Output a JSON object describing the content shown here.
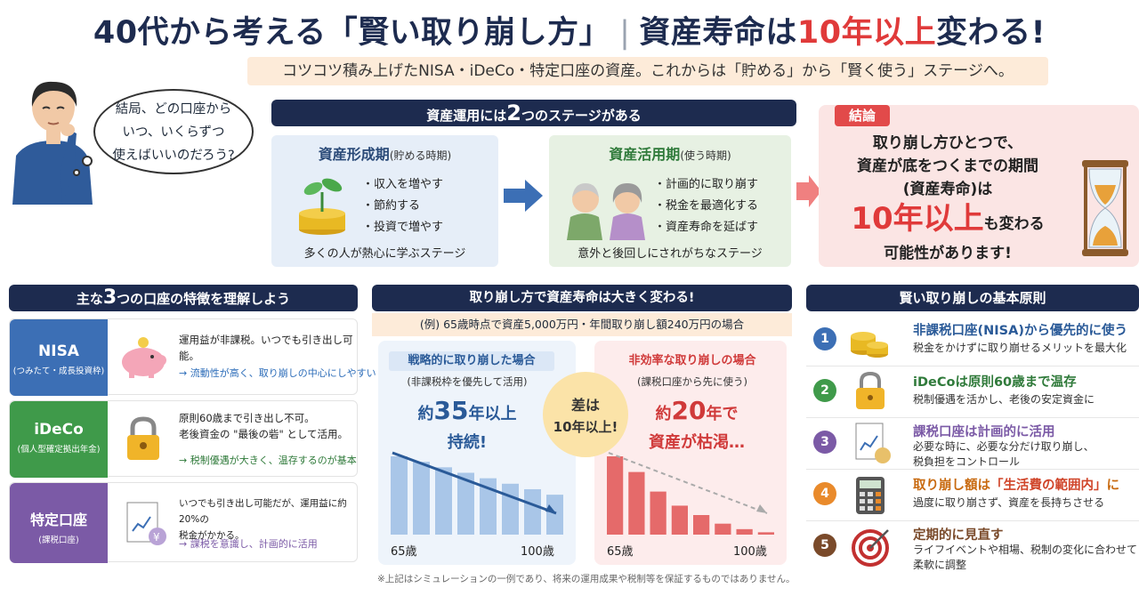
{
  "header": {
    "title_main": "40代から考える「賢い取り崩し方」",
    "title_sep": "|",
    "title_pre": "資産寿命は",
    "title_accent": "10年以上",
    "title_post": "変わる!",
    "subtitle": "コツコツ積み上げたNISA・iDeCo・特定口座の資産。これからは「貯める」から「賢く使う」ステージへ。",
    "accent_color": "#e03a3a"
  },
  "bubble": {
    "text": "結局、どの口座から\nいつ、いくらずつ\n使えばいいのだろう?"
  },
  "stages": {
    "header_pre": "資産運用には",
    "header_num": "2",
    "header_post": "つのステージがある",
    "formation": {
      "title": "資産形成期",
      "sub": "(貯める時期)",
      "items": [
        "収入を増やす",
        "節約する",
        "投資で増やす"
      ],
      "footer": "多くの人が熱心に学ぶステージ"
    },
    "utilization": {
      "title": "資産活用期",
      "sub": "(使う時期)",
      "items": [
        "計画的に取り崩す",
        "税金を最適化する",
        "資産寿命を延ばす"
      ],
      "footer": "意外と後回しにされがちなステージ"
    }
  },
  "conclusion": {
    "badge": "結論",
    "line1": "取り崩し方ひとつで、",
    "line2": "資産が底をつくまでの期間",
    "line3": "(資産寿命)は",
    "big": "10年以上",
    "after_big": "も変わる",
    "line5": "可能性があります!"
  },
  "accounts": {
    "header_pre": "主な",
    "header_num": "3",
    "header_post": "つの口座の特徴を理解しよう",
    "items": [
      {
        "name": "NISA",
        "sub": "(つみたて・成長投資枠)",
        "desc": "運用益が非課税。いつでも引き出し可能。",
        "link": "→ 流動性が高く、取り崩しの中心にしやすい",
        "color": "#3c6fb5",
        "icon": "piggy-bank-icon"
      },
      {
        "name": "iDeCo",
        "sub": "(個人型確定拠出年金)",
        "desc": "原則60歳まで引き出し不可。\n老後資金の \"最後の砦\" として活用。",
        "link": "→ 税制優遇が大きく、温存するのが基本",
        "color": "#3f9a4a",
        "icon": "padlock-icon"
      },
      {
        "name": "特定口座",
        "sub": "(課税口座)",
        "desc": "いつでも引き出し可能だが、運用益に約20%の\n税金がかかる。",
        "link": "→ 課税を意識し、計画的に活用",
        "color": "#7b5aa6",
        "icon": "tax-document-icon"
      }
    ]
  },
  "simulation": {
    "header": "取り崩し方で資産寿命は大きく変わる!",
    "example": "(例) 65歳時点で資産5,000万円・年間取り崩し額240万円の場合",
    "left": {
      "title": "戦略的に取り崩した場合",
      "sub": "(非課税枠を優先して活用)",
      "big_pre": "約",
      "big_num": "35",
      "big_post": "年以上",
      "line2": "持続!",
      "start": "65歳",
      "end": "100歳",
      "color": "#a9c6e8"
    },
    "right": {
      "title": "非効率な取り崩しの場合",
      "sub": "(課税口座から先に使う)",
      "big_pre": "約",
      "big_num": "20",
      "big_post": "年で",
      "line2": "資産が枯渇…",
      "start": "65歳",
      "end": "100歳",
      "color": "#e56a6a"
    },
    "diff_line1": "差は",
    "diff_line2": "10年以上!",
    "note": "※上記はシミュレーションの一例であり、将来の運用成果や税制等を保証するものではありません。"
  },
  "chart_data": [
    {
      "type": "bar",
      "title": "戦略的に取り崩した場合",
      "xlabel": "",
      "ylabel": "",
      "x_start": "65歳",
      "x_end": "100歳",
      "values": [
        100,
        93,
        86,
        79,
        72,
        65,
        58,
        51
      ]
    },
    {
      "type": "bar",
      "title": "非効率な取り崩しの場合",
      "xlabel": "",
      "ylabel": "",
      "x_start": "65歳",
      "x_end": "100歳",
      "values": [
        100,
        80,
        55,
        37,
        25,
        14,
        7,
        3
      ]
    }
  ],
  "principles": {
    "header": "賢い取り崩しの基本原則",
    "items": [
      {
        "num": "1",
        "title": "非課税口座(NISA)から優先的に使う",
        "desc": "税金をかけずに取り崩せるメリットを最大化",
        "color": "#3c6fb5",
        "icon": "coins-icon"
      },
      {
        "num": "2",
        "title": "iDeCoは原則60歳まで温存",
        "desc": "税制優遇を活かし、老後の安定資金に",
        "color": "#3f9a4a",
        "icon": "padlock-icon"
      },
      {
        "num": "3",
        "title": "課税口座は計画的に活用",
        "desc": "必要な時に、必要な分だけ取り崩し、\n税負担をコントロール",
        "color": "#7b5aa6",
        "icon": "tax-document-icon"
      },
      {
        "num": "4",
        "title_pre": "取り崩し額は",
        "title_hl": "「生活費の範囲内」",
        "title_post": "に",
        "desc": "過度に取り崩さず、資産を長持ちさせる",
        "color": "#e98a2b",
        "icon": "calculator-icon"
      },
      {
        "num": "5",
        "title": "定期的に見直す",
        "desc": "ライフイベントや相場、税制の変化に合わせて\n柔軟に調整",
        "color": "#7a4a2a",
        "icon": "target-icon"
      }
    ]
  }
}
